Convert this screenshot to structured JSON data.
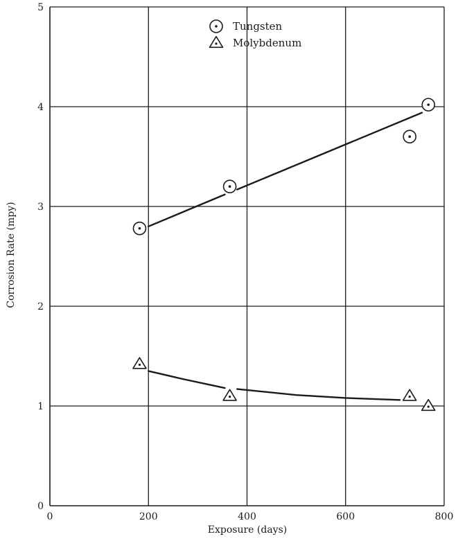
{
  "chart_data": {
    "type": "scatter",
    "title": "",
    "xlabel": "Exposure (days)",
    "ylabel": "Corrosion Rate (mpy)",
    "xlim": [
      0,
      800
    ],
    "ylim": [
      0,
      5
    ],
    "x_ticks": [
      0,
      200,
      400,
      600,
      800
    ],
    "y_ticks": [
      0,
      1,
      2,
      3,
      4,
      5
    ],
    "grid": true,
    "legend_position": "top-center",
    "series": [
      {
        "name": "Tungsten",
        "marker": "circle-dot",
        "points": [
          {
            "x": 182,
            "y": 2.78
          },
          {
            "x": 365,
            "y": 3.2
          },
          {
            "x": 730,
            "y": 3.7
          },
          {
            "x": 768,
            "y": 4.02
          }
        ],
        "trend": [
          {
            "x": 200,
            "y": 2.8
          },
          {
            "x": 355,
            "y": 3.12
          },
          {
            "x": 380,
            "y": 3.17
          },
          {
            "x": 755,
            "y": 3.94
          }
        ],
        "trend_segments": [
          [
            0,
            1
          ],
          [
            2,
            3
          ]
        ]
      },
      {
        "name": "Molybdenum",
        "marker": "triangle-dot",
        "points": [
          {
            "x": 182,
            "y": 1.42
          },
          {
            "x": 365,
            "y": 1.1
          },
          {
            "x": 730,
            "y": 1.1
          },
          {
            "x": 768,
            "y": 1.0
          }
        ],
        "trend": [
          {
            "x": 200,
            "y": 1.35
          },
          {
            "x": 270,
            "y": 1.27
          },
          {
            "x": 355,
            "y": 1.18
          },
          {
            "x": 380,
            "y": 1.17
          },
          {
            "x": 500,
            "y": 1.11
          },
          {
            "x": 600,
            "y": 1.08
          },
          {
            "x": 710,
            "y": 1.06
          }
        ],
        "trend_segments": [
          [
            0,
            2
          ],
          [
            3,
            6
          ]
        ]
      }
    ]
  }
}
